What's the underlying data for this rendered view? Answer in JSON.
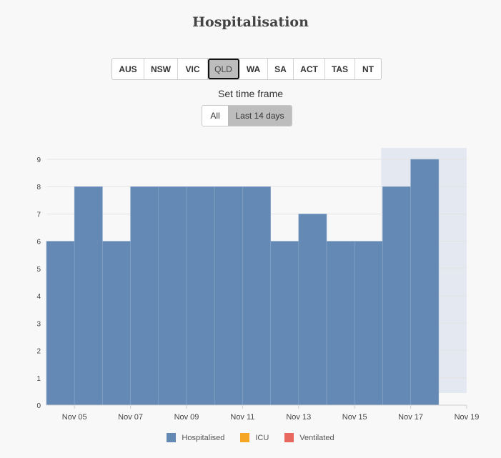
{
  "title": "Hospitalisation",
  "regions": {
    "items": [
      "AUS",
      "NSW",
      "VIC",
      "QLD",
      "WA",
      "SA",
      "ACT",
      "TAS",
      "NT"
    ],
    "selected": "QLD"
  },
  "timeframe": {
    "label": "Set time frame",
    "options": [
      "All",
      "Last 14 days"
    ],
    "selected": "Last 14 days"
  },
  "colors": {
    "hospitalised": "#6489b5",
    "icu": "#f5a623",
    "ventilated": "#e8685f",
    "highlight": "#e4e8f1"
  },
  "chart_data": {
    "type": "bar",
    "title": "Hospitalisation",
    "categories": [
      "Nov 05",
      "Nov 06",
      "Nov 07",
      "Nov 08",
      "Nov 09",
      "Nov 10",
      "Nov 11",
      "Nov 12",
      "Nov 13",
      "Nov 14",
      "Nov 15",
      "Nov 16",
      "Nov 17",
      "Nov 18",
      "Nov 19"
    ],
    "x_tick_labels": [
      "Nov 05",
      "Nov 07",
      "Nov 09",
      "Nov 11",
      "Nov 13",
      "Nov 15",
      "Nov 17",
      "Nov 19"
    ],
    "series": [
      {
        "name": "Hospitalised",
        "values": [
          6,
          8,
          6,
          8,
          8,
          8,
          8,
          8,
          6,
          7,
          6,
          6,
          8,
          9,
          null
        ]
      },
      {
        "name": "ICU",
        "values": [
          0,
          0,
          0,
          0,
          0,
          0,
          0,
          0,
          0,
          0,
          0,
          0,
          0,
          0,
          null
        ]
      },
      {
        "name": "Ventilated",
        "values": [
          0,
          0,
          0,
          0,
          0,
          0,
          0,
          0,
          0,
          0,
          0,
          0,
          0,
          0,
          null
        ]
      }
    ],
    "y_ticks": [
      0,
      1,
      2,
      3,
      4,
      5,
      6,
      7,
      8,
      9
    ],
    "ylim": [
      0,
      9
    ],
    "highlighted_range": [
      "Nov 17",
      "Nov 19"
    ],
    "legend": [
      "Hospitalised",
      "ICU",
      "Ventilated"
    ],
    "legend_position": "bottom",
    "grid": true
  }
}
